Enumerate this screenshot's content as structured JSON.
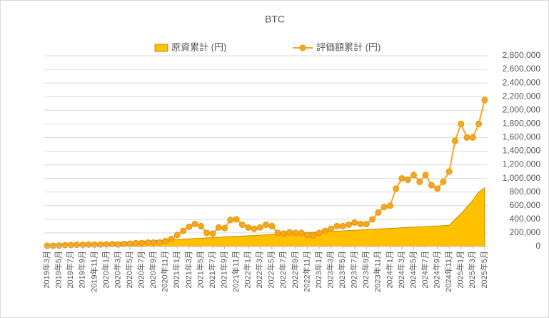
{
  "chart_data": {
    "type": "area-line",
    "title": "BTC",
    "categories": [
      "2019年3月",
      null,
      "2019年5月",
      null,
      "2019年7月",
      null,
      "2019年9月",
      null,
      "2019年11月",
      null,
      "2020年1月",
      null,
      "2020年3月",
      null,
      "2020年5月",
      null,
      "2020年7月",
      null,
      "2020年9月",
      null,
      "2020年11月",
      null,
      "2021年1月",
      null,
      "2021年3月",
      null,
      "2021年5月",
      null,
      "2021年7月",
      null,
      "2021年9月",
      null,
      "2021年11月",
      null,
      "2022年1月",
      null,
      "2022年3月",
      null,
      "2022年5月",
      null,
      "2022年7月",
      null,
      "2022年9月",
      null,
      "2022年11月",
      null,
      "2023年1月",
      null,
      "2023年3月",
      null,
      "2023年5月",
      null,
      "2023年7月",
      null,
      "2023年9月",
      null,
      "2023年11月",
      null,
      "2024年1月",
      null,
      "2024年3月",
      null,
      "2024年5月",
      null,
      "2024年7月",
      null,
      "2024年9月",
      null,
      "2024年11月",
      null,
      "2025年1月",
      null,
      "2025年3月",
      null,
      "2025年5月"
    ],
    "series": [
      {
        "name": "原資累計 (円)",
        "kind": "area",
        "color": "#ffc000",
        "values": [
          5000,
          10000,
          14000,
          19000,
          23000,
          28000,
          32000,
          37000,
          41000,
          46000,
          50000,
          55000,
          59000,
          64000,
          68000,
          73000,
          77000,
          82000,
          86000,
          91000,
          95000,
          100000,
          104000,
          109000,
          113000,
          118000,
          122000,
          127000,
          131000,
          136000,
          140000,
          145000,
          149000,
          154000,
          158000,
          163000,
          167000,
          172000,
          176000,
          181000,
          185000,
          190000,
          194000,
          199000,
          203000,
          208000,
          212000,
          217000,
          221000,
          226000,
          230000,
          235000,
          239000,
          244000,
          248000,
          253000,
          257000,
          262000,
          266000,
          271000,
          275000,
          280000,
          284000,
          289000,
          293000,
          298000,
          302000,
          307000,
          311000,
          400000,
          480000,
          580000,
          680000,
          800000,
          860000
        ]
      },
      {
        "name": "評価額累計 (円)",
        "kind": "line",
        "color": "#f5a623",
        "values": [
          10000,
          12000,
          15000,
          20000,
          22000,
          25000,
          25000,
          28000,
          28000,
          30000,
          32000,
          35000,
          30000,
          38000,
          42000,
          48000,
          52000,
          58000,
          58000,
          62000,
          80000,
          110000,
          170000,
          230000,
          290000,
          330000,
          300000,
          200000,
          190000,
          280000,
          270000,
          390000,
          400000,
          320000,
          280000,
          260000,
          280000,
          320000,
          300000,
          200000,
          190000,
          210000,
          200000,
          200000,
          170000,
          160000,
          200000,
          230000,
          260000,
          300000,
          300000,
          320000,
          350000,
          330000,
          330000,
          400000,
          500000,
          580000,
          600000,
          850000,
          1000000,
          980000,
          1050000,
          950000,
          1050000,
          900000,
          850000,
          950000,
          1100000,
          1550000,
          1800000,
          1600000,
          1600000,
          1800000,
          2150000
        ]
      }
    ],
    "ylim": [
      0,
      2800000
    ],
    "yticks": [
      0,
      {
        "value": 200000,
        "label": "200,000"
      },
      {
        "value": 400000,
        "label": "400,000"
      },
      {
        "value": 600000,
        "label": "600,000"
      },
      {
        "value": 800000,
        "label": "800,000"
      },
      {
        "value": 1000000,
        "label": "1,000,000"
      },
      {
        "value": 1200000,
        "label": "1,200,000"
      },
      {
        "value": 1400000,
        "label": "1,400,000"
      },
      {
        "value": 1600000,
        "label": "1,600,000"
      },
      {
        "value": 1800000,
        "label": "1,800,000"
      },
      {
        "value": 2000000,
        "label": "2,000,000"
      },
      {
        "value": 2200000,
        "label": "2,200,000"
      },
      {
        "value": 2400000,
        "label": "2,400,000"
      },
      {
        "value": 2600000,
        "label": "2,600,000"
      },
      {
        "value": 2800000,
        "label": "2,800,000"
      }
    ],
    "grid": true
  }
}
